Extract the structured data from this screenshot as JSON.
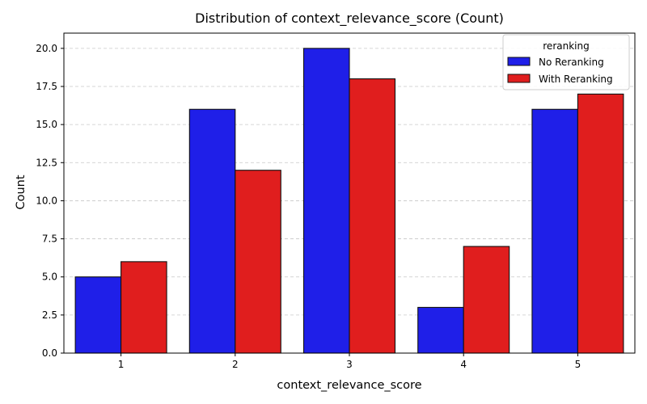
{
  "chart_data": {
    "type": "bar",
    "title": "Distribution of context_relevance_score (Count)",
    "xlabel": "context_relevance_score",
    "ylabel": "Count",
    "categories": [
      "1",
      "2",
      "3",
      "4",
      "5"
    ],
    "series": [
      {
        "name": "No Reranking",
        "color": "#1f1fe8",
        "values": [
          5,
          16,
          20,
          3,
          16
        ]
      },
      {
        "name": "With Reranking",
        "color": "#e01e1e",
        "values": [
          6,
          12,
          18,
          7,
          17
        ]
      }
    ],
    "ylim": [
      0,
      21
    ],
    "yticks": [
      0.0,
      2.5,
      5.0,
      7.5,
      10.0,
      12.5,
      15.0,
      17.5,
      20.0
    ],
    "ytick_labels": [
      "0.0",
      "2.5",
      "5.0",
      "7.5",
      "10.0",
      "12.5",
      "15.0",
      "17.5",
      "20.0"
    ],
    "grid": "y-dashed",
    "legend": {
      "title": "reranking",
      "placement": "top-right"
    }
  }
}
